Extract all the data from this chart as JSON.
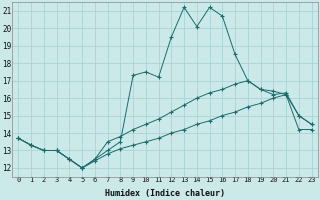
{
  "xlabel": "Humidex (Indice chaleur)",
  "ylabel": "",
  "xlim": [
    -0.5,
    23.5
  ],
  "ylim": [
    11.5,
    21.5
  ],
  "xticks": [
    0,
    1,
    2,
    3,
    4,
    5,
    6,
    7,
    8,
    9,
    10,
    11,
    12,
    13,
    14,
    15,
    16,
    17,
    18,
    19,
    20,
    21,
    22,
    23
  ],
  "yticks": [
    12,
    13,
    14,
    15,
    16,
    17,
    18,
    19,
    20,
    21
  ],
  "bg_color": "#cce9ea",
  "grid_color": "#aad3d6",
  "line_color": "#1a6b6b",
  "series1_y": [
    13.7,
    13.3,
    13.0,
    13.0,
    12.5,
    12.0,
    12.5,
    13.0,
    13.5,
    17.3,
    17.5,
    17.2,
    19.5,
    21.2,
    20.1,
    21.2,
    20.7,
    18.5,
    17.0,
    16.5,
    16.2,
    16.3,
    15.0,
    14.5
  ],
  "series2_y": [
    13.7,
    13.3,
    13.0,
    13.0,
    12.5,
    12.0,
    12.5,
    13.5,
    13.8,
    14.2,
    14.5,
    14.8,
    15.2,
    15.6,
    16.0,
    16.3,
    16.5,
    16.8,
    17.0,
    16.5,
    16.4,
    16.2,
    15.0,
    14.5
  ],
  "series3_y": [
    13.7,
    13.3,
    13.0,
    13.0,
    12.5,
    12.0,
    12.4,
    12.8,
    13.1,
    13.3,
    13.5,
    13.7,
    14.0,
    14.2,
    14.5,
    14.7,
    15.0,
    15.2,
    15.5,
    15.7,
    16.0,
    16.2,
    14.2,
    14.2
  ],
  "title_fontsize": 7,
  "xlabel_fontsize": 6,
  "tick_fontsize": 5
}
